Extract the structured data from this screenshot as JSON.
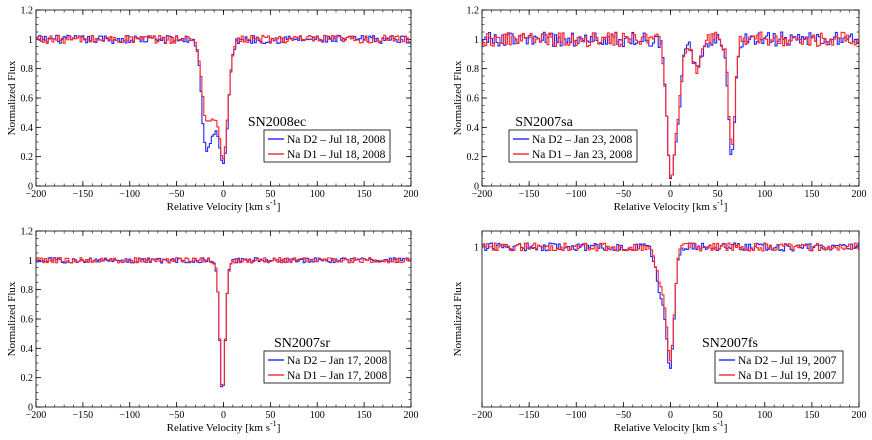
{
  "chart_data": [
    {
      "type": "line",
      "title": "SN2008ec",
      "xlabel": "Relative Velocity [km s",
      "xlabel_sup": "-1",
      "xlabel_close": "]",
      "ylabel": "Normalized Flux",
      "xlim": [
        -200,
        200
      ],
      "ylim": [
        0,
        1.2
      ],
      "xticks": [
        -200,
        -150,
        -100,
        -50,
        0,
        50,
        100,
        150,
        200
      ],
      "yticks": [
        0,
        0.2,
        0.4,
        0.6,
        0.8,
        1,
        1.2
      ],
      "ytick_labels": [
        "0",
        "0.2",
        "0.4",
        "0.6",
        "0.8",
        "1",
        "1.2"
      ],
      "legend_position": "lower-right",
      "noise": 0.028,
      "series": [
        {
          "name": "Na D2 – Jul 18, 2008",
          "color": "#2424ff",
          "components": [
            {
              "center": -20,
              "depth": 0.55,
              "width": 4
            },
            {
              "center": -12,
              "depth": 0.55,
              "width": 5
            },
            {
              "center": 0,
              "depth": 0.82,
              "width": 5
            }
          ]
        },
        {
          "name": "Na D1 – Jul 18, 2008",
          "color": "#ff2424",
          "components": [
            {
              "center": -20,
              "depth": 0.38,
              "width": 4
            },
            {
              "center": -12,
              "depth": 0.45,
              "width": 5
            },
            {
              "center": 0,
              "depth": 0.78,
              "width": 5
            }
          ]
        }
      ]
    },
    {
      "type": "line",
      "title": "SN2007sa",
      "xlabel": "Relative Velocity [km s",
      "xlabel_sup": "-1",
      "xlabel_close": "]",
      "ylabel": "Normalized Flux",
      "xlim": [
        -200,
        200
      ],
      "ylim": [
        0,
        1.2
      ],
      "xticks": [
        -200,
        -150,
        -100,
        -50,
        0,
        50,
        100,
        150,
        200
      ],
      "yticks": [
        0,
        0.2,
        0.4,
        0.6,
        0.8,
        1,
        1.2
      ],
      "ytick_labels": [
        "0",
        "0.2",
        "0.4",
        "0.6",
        "0.8",
        "1",
        "1.2"
      ],
      "legend_position": "lower-left",
      "noise": 0.05,
      "series": [
        {
          "name": "Na D2 – Jan 23, 2008",
          "color": "#2424ff",
          "components": [
            {
              "center": 0,
              "depth": 0.88,
              "width": 4
            },
            {
              "center": 8,
              "depth": 0.45,
              "width": 4
            },
            {
              "center": 28,
              "depth": 0.22,
              "width": 4
            },
            {
              "center": 65,
              "depth": 0.8,
              "width": 3.5
            }
          ]
        },
        {
          "name": "Na D1 – Jan 23, 2008",
          "color": "#ff2424",
          "components": [
            {
              "center": 0,
              "depth": 0.9,
              "width": 4
            },
            {
              "center": 8,
              "depth": 0.42,
              "width": 4
            },
            {
              "center": 28,
              "depth": 0.2,
              "width": 4
            },
            {
              "center": 65,
              "depth": 0.72,
              "width": 3.5
            }
          ]
        }
      ]
    },
    {
      "type": "line",
      "title": "SN2007sr",
      "xlabel": "Relative Velocity [km s",
      "xlabel_sup": "-1",
      "xlabel_close": "]",
      "ylabel": "Normalized Flux",
      "xlim": [
        -200,
        200
      ],
      "ylim": [
        0,
        1.2
      ],
      "xticks": [
        -200,
        -150,
        -100,
        -50,
        0,
        50,
        100,
        150,
        200
      ],
      "yticks": [
        0,
        0.2,
        0.4,
        0.6,
        0.8,
        1,
        1.2
      ],
      "ytick_labels": [
        "0",
        "0.2",
        "0.4",
        "0.6",
        "0.8",
        "1",
        "1.2"
      ],
      "legend_position": "lower-right",
      "noise": 0.018,
      "series": [
        {
          "name": "Na D2 – Jan 17, 2008",
          "color": "#2424ff",
          "components": [
            {
              "center": -1,
              "depth": 0.91,
              "width": 3
            }
          ]
        },
        {
          "name": "Na D1 – Jan 17, 2008",
          "color": "#ff2424",
          "components": [
            {
              "center": -1,
              "depth": 0.9,
              "width": 3
            }
          ]
        }
      ]
    },
    {
      "type": "line",
      "title": "SN2007fs",
      "xlabel": "Relative Velocity [km s",
      "xlabel_sup": "-1",
      "xlabel_close": "]",
      "ylabel": "Normalized Flux",
      "xlim": [
        -200,
        200
      ],
      "ylim": [
        0,
        1.1
      ],
      "xticks": [
        -200,
        -150,
        -100,
        -50,
        0,
        50,
        100,
        150,
        200
      ],
      "yticks": [
        1
      ],
      "ytick_labels": [
        "1"
      ],
      "legend_position": "lower-right",
      "noise": 0.025,
      "series": [
        {
          "name": "Na D2 – Jul 19, 2007",
          "color": "#2424ff",
          "components": [
            {
              "center": -10,
              "depth": 0.3,
              "width": 5
            },
            {
              "center": 0,
              "depth": 0.72,
              "width": 4
            }
          ]
        },
        {
          "name": "Na D1 – Jul 19, 2007",
          "color": "#ff2424",
          "components": [
            {
              "center": -10,
              "depth": 0.22,
              "width": 5
            },
            {
              "center": 0,
              "depth": 0.67,
              "width": 4
            }
          ]
        }
      ]
    }
  ]
}
